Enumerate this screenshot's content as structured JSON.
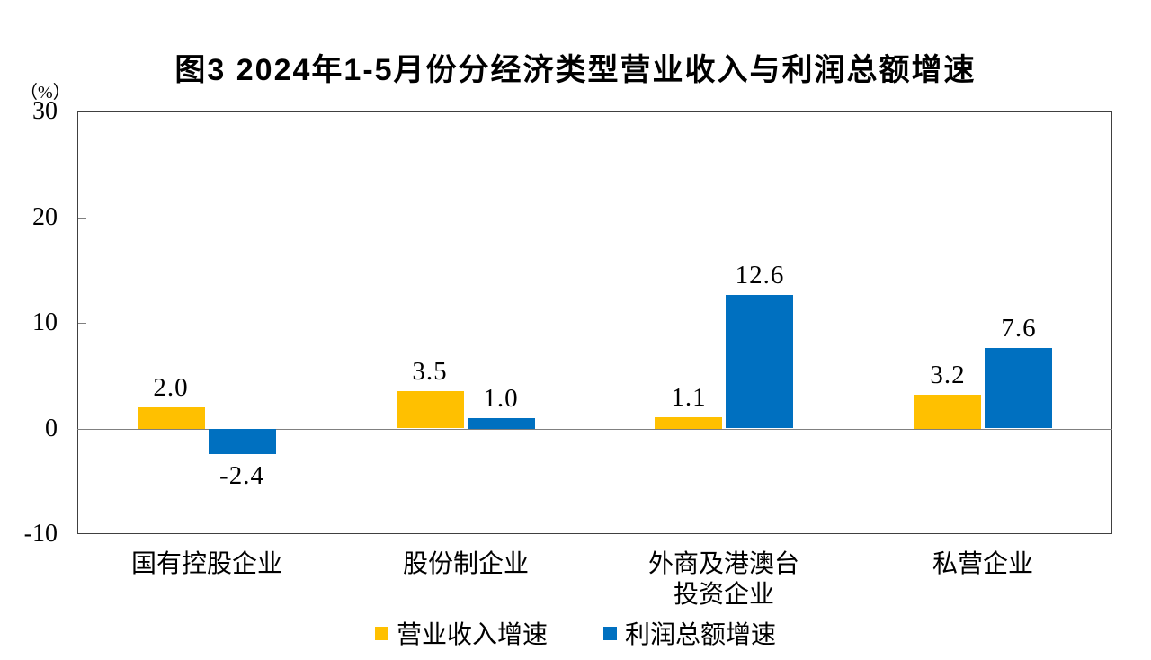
{
  "chart_data": {
    "type": "bar",
    "title": "图3  2024年1-5月份分经济类型营业收入与利润总额增速",
    "unit_label": "（%）",
    "categories": [
      "国有控股企业",
      "股份制企业",
      "外商及港澳台\n投资企业",
      "私营企业"
    ],
    "series": [
      {
        "name": "营业收入增速",
        "color": "#FFC000",
        "values": [
          2.0,
          3.5,
          1.1,
          3.2
        ]
      },
      {
        "name": "利润总额增速",
        "color": "#0070C0",
        "values": [
          -2.4,
          1.0,
          12.6,
          7.6
        ]
      }
    ],
    "yticks": [
      30,
      20,
      10,
      0,
      -10
    ],
    "ylim": [
      -10,
      30
    ],
    "value_label_format": "one_decimal",
    "legend_position": "bottom",
    "grid": false
  },
  "colors": {
    "axis_frame": "#404040",
    "zero_line": "#808080",
    "text": "#000000"
  }
}
